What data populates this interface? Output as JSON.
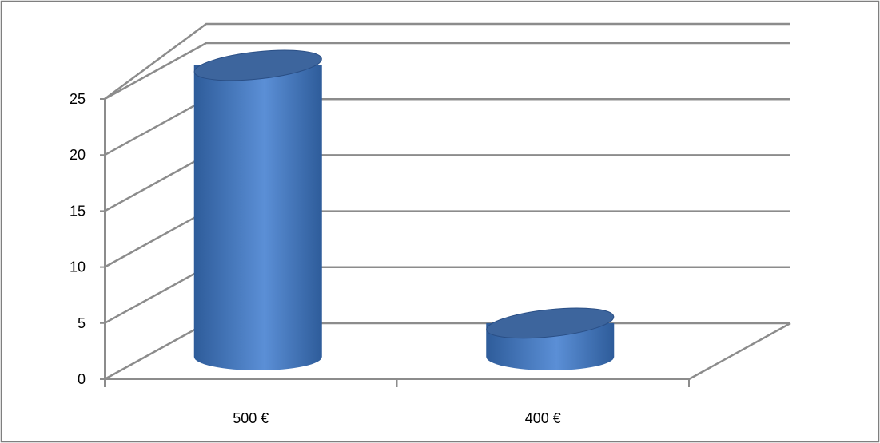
{
  "colors": {
    "bar_light": "#5b8fd6",
    "bar_mid": "#4a7ec7",
    "bar_dark": "#2e5c9a",
    "bar_top": "#3d659d",
    "bar_edge": "#2a4f86",
    "gridline": "#8c8c8c",
    "frame": "#7f7f7f"
  },
  "chart_data": {
    "type": "bar",
    "style": "3d-cylinder",
    "title": "",
    "xlabel": "",
    "ylabel": "",
    "categories": [
      "500 €",
      "400 €"
    ],
    "values": [
      26,
      3
    ],
    "ylim": [
      0,
      25
    ],
    "yticks": [
      0,
      5,
      10,
      15,
      20,
      25
    ],
    "ytick_labels": [
      "0",
      "5",
      "10",
      "15",
      "20",
      "25"
    ],
    "grid": true,
    "legend": "none"
  }
}
